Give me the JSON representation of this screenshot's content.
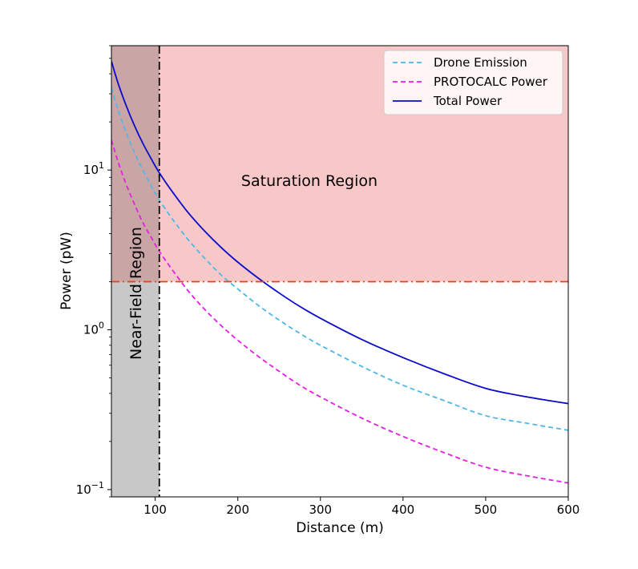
{
  "chart_data": {
    "type": "line",
    "xlabel": "Distance (m)",
    "ylabel": "Power (pW)",
    "xlim": [
      47,
      600
    ],
    "ylim": [
      0.09,
      60
    ],
    "yscale": "log",
    "x_ticks": [
      {
        "value": 100,
        "label": "100"
      },
      {
        "value": 200,
        "label": "200"
      },
      {
        "value": 300,
        "label": "300"
      },
      {
        "value": 400,
        "label": "400"
      },
      {
        "value": 500,
        "label": "500"
      },
      {
        "value": 600,
        "label": "600"
      }
    ],
    "y_ticks": [
      {
        "value": 0.1,
        "base": "10",
        "exp": "−1"
      },
      {
        "value": 1,
        "base": "10",
        "exp": "0"
      },
      {
        "value": 10,
        "base": "10",
        "exp": "1"
      }
    ],
    "grid": false,
    "legend_position": "top-right",
    "x": [
      47,
      55,
      65,
      75,
      85,
      95,
      105,
      120,
      140,
      160,
      180,
      200,
      225,
      250,
      275,
      300,
      350,
      400,
      450,
      500,
      550,
      600
    ],
    "series": [
      {
        "name": "Drone Emission",
        "color": "#4db8e8",
        "dash": "dashed",
        "values": [
          32.6,
          23.8,
          17.1,
          12.8,
          10.0,
          8.0,
          6.5,
          5.0,
          3.66,
          2.8,
          2.2,
          1.8,
          1.42,
          1.15,
          0.95,
          0.8,
          0.59,
          0.45,
          0.36,
          0.29,
          0.26,
          0.235
        ]
      },
      {
        "name": "PROTOCALC Power",
        "color": "#e51ee5",
        "dash": "dashed",
        "values": [
          15.4,
          11.3,
          8.1,
          6.1,
          4.7,
          3.8,
          3.1,
          2.4,
          1.75,
          1.34,
          1.06,
          0.86,
          0.68,
          0.55,
          0.45,
          0.38,
          0.28,
          0.215,
          0.17,
          0.138,
          0.122,
          0.11
        ]
      },
      {
        "name": "Total Power",
        "color": "#0a0acc",
        "dash": "solid",
        "values": [
          48,
          35,
          25.2,
          18.9,
          14.7,
          11.8,
          9.6,
          7.4,
          5.4,
          4.14,
          3.27,
          2.65,
          2.1,
          1.7,
          1.4,
          1.18,
          0.87,
          0.67,
          0.53,
          0.43,
          0.38,
          0.345
        ]
      }
    ],
    "saturation_threshold": 2.0,
    "near_field_limit": 105,
    "annotations": {
      "saturation": "Saturation Region",
      "near_field": "Near-Field Region"
    },
    "colors": {
      "saturation_fill": "#f8c8c8",
      "near_field_fill": "#c8c8c8",
      "overlap_fill": "#caa5a5",
      "threshold_line": "#e8401a",
      "boundary_line": "#000000"
    }
  }
}
